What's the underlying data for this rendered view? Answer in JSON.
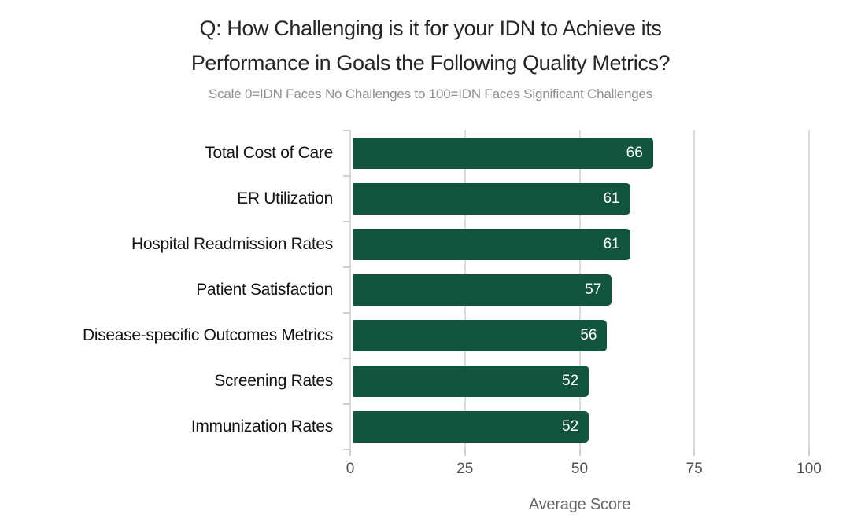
{
  "title": {
    "lines": [
      "Q: How Challenging is it for your IDN to Achieve its",
      "Performance in Goals the Following Quality Metrics?"
    ],
    "subtitle": "Scale 0=IDN Faces No Challenges to 100=IDN Faces Significant Challenges"
  },
  "chart_data": {
    "type": "bar",
    "orientation": "horizontal",
    "title": "Q: How Challenging is it for your IDN to Achieve its Performance in Goals the Following Quality Metrics?",
    "subtitle": "Scale 0=IDN Faces No Challenges to 100=IDN Faces Significant Challenges",
    "categories": [
      "Total Cost of Care",
      "ER Utilization",
      "Hospital Readmission Rates",
      "Patient Satisfaction",
      "Disease-specific Outcomes Metrics",
      "Screening Rates",
      "Immunization Rates"
    ],
    "values": [
      66,
      61,
      61,
      57,
      56,
      52,
      52
    ],
    "xlabel": "Average Score",
    "ylabel": "",
    "x_ticks": [
      0,
      25,
      50,
      75,
      100
    ],
    "xlim": [
      0,
      100
    ],
    "grid": "vertical",
    "legend": "none",
    "colors": {
      "bar": "#12543d",
      "value_label": "#ffffff",
      "gridline": "#dbdbdb",
      "tick_mark": "#cfcfcf",
      "title_text": "#262626",
      "subtitle_text": "#8e8e8e",
      "category_text": "#141414",
      "axis_text": "#4f4f4f"
    }
  }
}
